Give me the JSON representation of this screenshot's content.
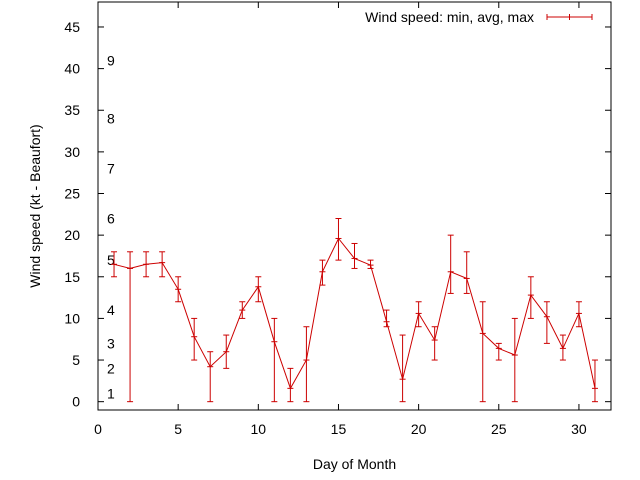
{
  "chart_data": {
    "type": "line",
    "xlabel": "Day of Month",
    "ylabel": "Wind speed (kt - Beaufort)",
    "xlim": [
      0,
      32
    ],
    "ylim": [
      -1,
      48
    ],
    "x_ticks": [
      0,
      5,
      10,
      15,
      20,
      25,
      30
    ],
    "y_ticks": [
      0,
      5,
      10,
      15,
      20,
      25,
      30,
      35,
      40,
      45
    ],
    "grid": false,
    "legend_position": "top-right",
    "series": [
      {
        "name": "Wind speed: min, avg, max",
        "color": "#cc0000",
        "points": [
          {
            "x": 1,
            "y": 16.5,
            "min": 15,
            "max": 18
          },
          {
            "x": 2,
            "y": 16,
            "min": 0,
            "max": 18
          },
          {
            "x": 3,
            "y": 16.5,
            "min": 15,
            "max": 18
          },
          {
            "x": 4,
            "y": 16.7,
            "min": 15,
            "max": 18
          },
          {
            "x": 5,
            "y": 13.5,
            "min": 12,
            "max": 15
          },
          {
            "x": 6,
            "y": 7.8,
            "min": 5,
            "max": 10
          },
          {
            "x": 7,
            "y": 4.2,
            "min": 0,
            "max": 6
          },
          {
            "x": 8,
            "y": 6,
            "min": 4,
            "max": 8
          },
          {
            "x": 9,
            "y": 11,
            "min": 10,
            "max": 12
          },
          {
            "x": 10,
            "y": 13.8,
            "min": 12,
            "max": 15
          },
          {
            "x": 11,
            "y": 7.2,
            "min": 0,
            "max": 10
          },
          {
            "x": 12,
            "y": 1.6,
            "min": 0,
            "max": 4
          },
          {
            "x": 13,
            "y": 5,
            "min": 0,
            "max": 9
          },
          {
            "x": 14,
            "y": 15.6,
            "min": 14,
            "max": 17
          },
          {
            "x": 15,
            "y": 19.6,
            "min": 17,
            "max": 22
          },
          {
            "x": 16,
            "y": 17.2,
            "min": 16,
            "max": 19
          },
          {
            "x": 17,
            "y": 16.4,
            "min": 16,
            "max": 17
          },
          {
            "x": 18,
            "y": 9.6,
            "min": 9,
            "max": 11
          },
          {
            "x": 19,
            "y": 2.7,
            "min": 0,
            "max": 8
          },
          {
            "x": 20,
            "y": 10.6,
            "min": 9,
            "max": 12
          },
          {
            "x": 21,
            "y": 7.4,
            "min": 5,
            "max": 9
          },
          {
            "x": 22,
            "y": 15.6,
            "min": 13,
            "max": 20
          },
          {
            "x": 23,
            "y": 14.8,
            "min": 13,
            "max": 18
          },
          {
            "x": 24,
            "y": 8.2,
            "min": 0,
            "max": 12
          },
          {
            "x": 25,
            "y": 6.4,
            "min": 5,
            "max": 7
          },
          {
            "x": 26,
            "y": 5.6,
            "min": 0,
            "max": 10
          },
          {
            "x": 27,
            "y": 12.8,
            "min": 10,
            "max": 15
          },
          {
            "x": 28,
            "y": 10.2,
            "min": 7,
            "max": 12
          },
          {
            "x": 29,
            "y": 6.4,
            "min": 5,
            "max": 8
          },
          {
            "x": 30,
            "y": 10.6,
            "min": 9,
            "max": 12
          },
          {
            "x": 31,
            "y": 1.6,
            "min": 0,
            "max": 5
          }
        ]
      }
    ],
    "beaufort_labels": [
      {
        "label": "1",
        "y": 1
      },
      {
        "label": "2",
        "y": 4
      },
      {
        "label": "3",
        "y": 7
      },
      {
        "label": "4",
        "y": 11
      },
      {
        "label": "5",
        "y": 17
      },
      {
        "label": "6",
        "y": 22
      },
      {
        "label": "7",
        "y": 28
      },
      {
        "label": "8",
        "y": 34
      },
      {
        "label": "9",
        "y": 41
      }
    ]
  }
}
